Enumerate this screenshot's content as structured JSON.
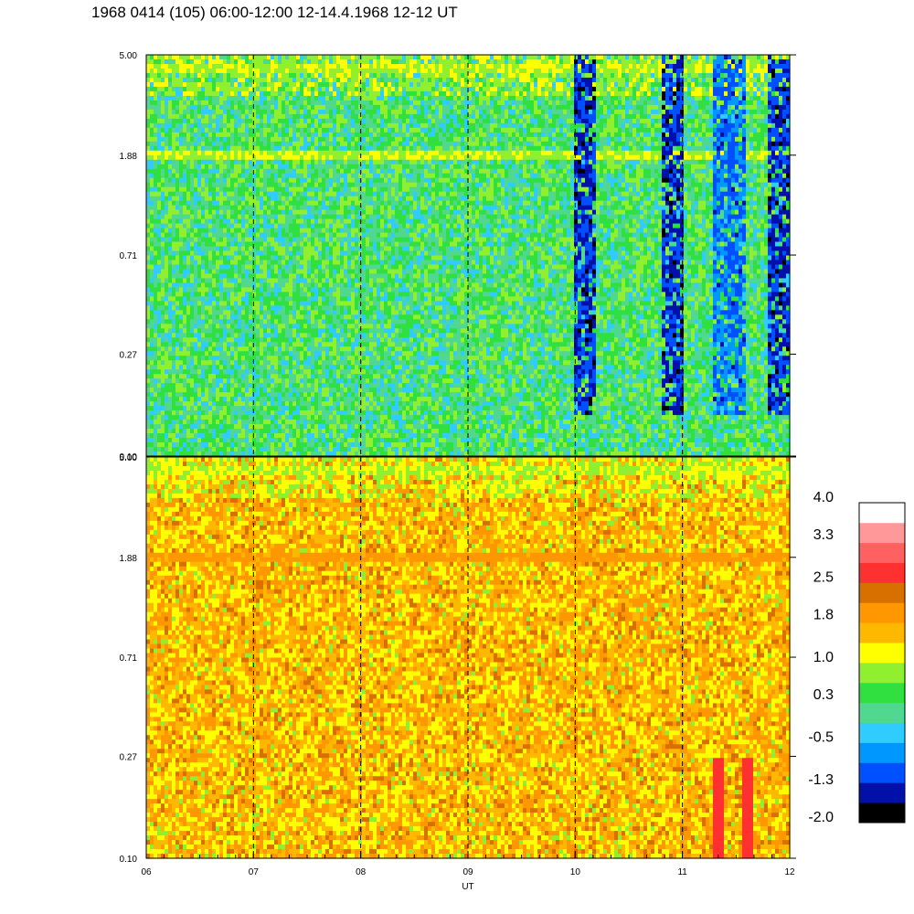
{
  "title": "1968 0414 (105) 06:00-12:00 12-14.4.1968  12-12 UT",
  "chart_data": [
    {
      "type": "heatmap",
      "panel": "upper",
      "x_range": [
        6,
        12
      ],
      "y_scale": "log",
      "y_range": [
        0.1,
        5.0
      ],
      "y_tick_labels": [
        "5.00",
        "1.88",
        "0.71",
        "0.27",
        "0.10"
      ],
      "y_ticks": [
        5.0,
        1.88,
        0.71,
        0.27,
        0.1
      ],
      "dashed_hours": [
        7,
        8,
        9,
        10,
        11
      ],
      "dominant_level": 0.3,
      "enhanced_bands": [
        {
          "y": 4.4,
          "level": 1.0
        },
        {
          "y": 1.88,
          "level": 1.0
        }
      ],
      "depleted_intervals": [
        [
          10.0,
          10.2,
          -1.3
        ],
        [
          10.8,
          11.0,
          -1.3
        ],
        [
          11.3,
          11.6,
          -0.9
        ],
        [
          11.8,
          12.0,
          -1.3
        ]
      ]
    },
    {
      "type": "heatmap",
      "panel": "lower",
      "x_range": [
        6,
        12
      ],
      "y_scale": "log",
      "y_range": [
        0.1,
        5.0
      ],
      "y_tick_labels": [
        "5.00",
        "1.88",
        "0.71",
        "0.27",
        "0.10"
      ],
      "y_ticks": [
        5.0,
        1.88,
        0.71,
        0.27,
        0.1
      ],
      "dashed_hours": [
        7,
        8,
        9,
        10,
        11
      ],
      "dominant_level": 1.6,
      "enhanced_bands": [
        {
          "y": 4.4,
          "level": 1.0
        },
        {
          "y": 1.88,
          "level": 1.9
        }
      ],
      "high_intervals": [
        [
          11.3,
          11.4,
          2.6
        ],
        [
          11.55,
          11.65,
          2.6
        ]
      ]
    }
  ],
  "x_axis": {
    "label": "UT",
    "tick_labels": [
      "06",
      "07",
      "08",
      "09",
      "10",
      "11",
      "12"
    ],
    "ticks": [
      6,
      7,
      8,
      9,
      10,
      11,
      12
    ]
  },
  "colorbar": {
    "labels": [
      "4.0",
      "3.3",
      "2.5",
      "1.8",
      "1.0",
      "0.3",
      "-0.5",
      "-1.3",
      "-2.0"
    ],
    "label_values": [
      4.0,
      3.3,
      2.5,
      1.8,
      1.0,
      0.3,
      -0.5,
      -1.3,
      -2.0
    ],
    "range": [
      -2.0,
      4.0
    ],
    "colors": [
      "#000000",
      "#0010a8",
      "#0050ff",
      "#0098ff",
      "#30ccff",
      "#50d890",
      "#30e040",
      "#90f030",
      "#ffff00",
      "#ffb800",
      "#ff9800",
      "#d87000",
      "#ff3030",
      "#ff6060",
      "#ff9898",
      "#ffffff"
    ]
  }
}
